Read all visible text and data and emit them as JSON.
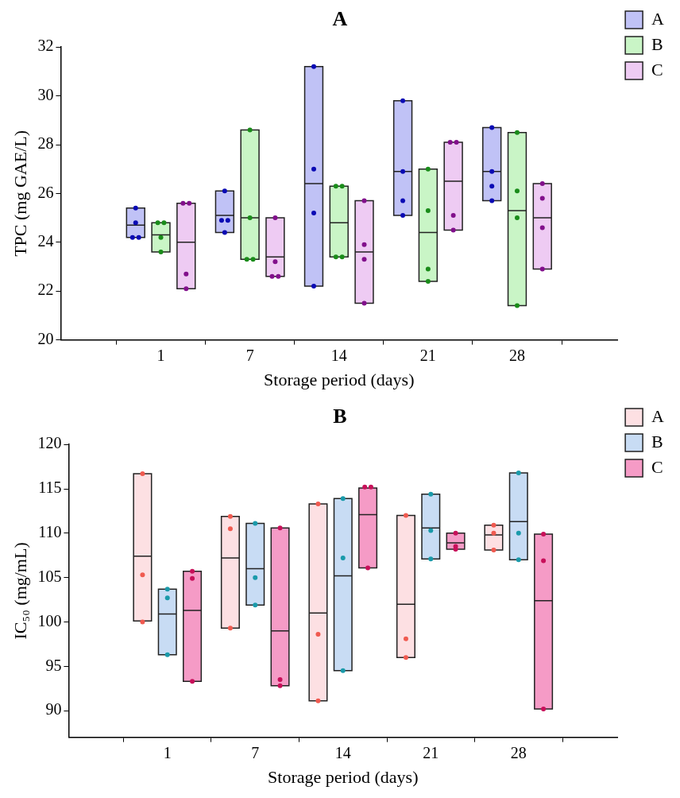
{
  "chart_data": [
    {
      "type": "box",
      "title": "A",
      "xlabel": "Storage period (days)",
      "ylabel": "TPC (mg GAE/L)",
      "categories": [
        "1",
        "7",
        "14",
        "21",
        "28"
      ],
      "ylim": [
        20,
        32
      ],
      "yticks": [
        20,
        22,
        24,
        26,
        28,
        30,
        32
      ],
      "grid": false,
      "legend": "top right",
      "marker": "circle",
      "series": [
        {
          "name": "A",
          "color": "#c0c2f6",
          "boxes": [
            {
              "low": 24.2,
              "q1": 24.2,
              "median": 24.7,
              "q3": 25.4,
              "high": 25.4
            },
            {
              "low": 24.4,
              "q1": 24.4,
              "median": 25.1,
              "q3": 26.1,
              "high": 26.1
            },
            {
              "low": 22.2,
              "q1": 22.2,
              "median": 26.4,
              "q3": 31.2,
              "high": 31.2
            },
            {
              "low": 25.1,
              "q1": 25.1,
              "median": 26.9,
              "q3": 29.8,
              "high": 29.8
            },
            {
              "low": 25.7,
              "q1": 25.7,
              "median": 26.9,
              "q3": 28.7,
              "high": 28.7
            }
          ]
        },
        {
          "name": "B",
          "color": "#c9f5c6",
          "boxes": [
            {
              "low": 23.6,
              "q1": 23.6,
              "median": 24.3,
              "q3": 24.8,
              "high": 24.8
            },
            {
              "low": 23.3,
              "q1": 23.3,
              "median": 25.0,
              "q3": 28.6,
              "high": 28.6
            },
            {
              "low": 23.4,
              "q1": 23.4,
              "median": 24.8,
              "q3": 26.3,
              "high": 26.3
            },
            {
              "low": 22.4,
              "q1": 22.4,
              "median": 24.4,
              "q3": 27.0,
              "high": 27.0
            },
            {
              "low": 21.4,
              "q1": 21.4,
              "median": 25.3,
              "q3": 28.5,
              "high": 28.5
            }
          ]
        },
        {
          "name": "C",
          "color": "#eecbf3",
          "boxes": [
            {
              "low": 22.1,
              "q1": 22.1,
              "median": 24.0,
              "q3": 25.6,
              "high": 25.6
            },
            {
              "low": 22.6,
              "q1": 22.6,
              "median": 23.4,
              "q3": 25.0,
              "high": 25.0
            },
            {
              "low": 21.5,
              "q1": 21.5,
              "median": 23.6,
              "q3": 25.7,
              "high": 25.7
            },
            {
              "low": 24.5,
              "q1": 24.5,
              "median": 26.5,
              "q3": 28.1,
              "high": 28.1
            },
            {
              "low": 22.9,
              "q1": 22.9,
              "median": 25.0,
              "q3": 26.4,
              "high": 26.4
            }
          ]
        },
        {
          "type": "scatter",
          "color": "#0a0ab4",
          "x": [
            "1",
            "1",
            "1",
            "1",
            "7",
            "7",
            "7",
            "7",
            "14",
            "14",
            "14",
            "14",
            "21",
            "21",
            "21",
            "21",
            "28",
            "28",
            "28",
            "28"
          ],
          "values": [
            25.4,
            24.8,
            24.2,
            24.2,
            26.1,
            24.9,
            24.9,
            24.4,
            31.2,
            27.0,
            25.2,
            22.2,
            29.8,
            26.9,
            25.7,
            25.1,
            28.7,
            26.9,
            26.3,
            25.7
          ]
        },
        {
          "type": "scatter",
          "color": "#1a8c1a",
          "x": [
            "1",
            "1",
            "1",
            "1",
            "7",
            "7",
            "7",
            "7",
            "14",
            "14",
            "14",
            "14",
            "21",
            "21",
            "21",
            "21",
            "28",
            "28",
            "28",
            "28"
          ],
          "values": [
            24.8,
            24.8,
            24.2,
            23.6,
            28.6,
            25.0,
            23.3,
            23.3,
            26.3,
            26.3,
            23.4,
            23.4,
            27.0,
            25.3,
            22.9,
            22.4,
            28.5,
            26.1,
            25.0,
            21.4
          ]
        },
        {
          "type": "scatter",
          "color": "#82108c",
          "x": [
            "1",
            "1",
            "1",
            "1",
            "7",
            "7",
            "7",
            "7",
            "14",
            "14",
            "14",
            "14",
            "21",
            "21",
            "21",
            "21",
            "28",
            "28",
            "28",
            "28"
          ],
          "values": [
            25.6,
            25.6,
            22.7,
            22.1,
            25.0,
            23.2,
            22.6,
            22.6,
            25.7,
            23.9,
            23.3,
            21.5,
            28.1,
            28.1,
            25.1,
            24.5,
            26.4,
            25.8,
            24.6,
            22.9
          ]
        }
      ]
    },
    {
      "type": "box",
      "title": "B",
      "xlabel": "Storage period (days)",
      "ylabel": "IC₅₀ (mg/mL)",
      "categories": [
        "1",
        "7",
        "14",
        "21",
        "28"
      ],
      "ylim": [
        87,
        120
      ],
      "yticks": [
        90,
        95,
        100,
        105,
        110,
        115,
        120
      ],
      "grid": false,
      "legend": "top right",
      "marker": "circle",
      "series": [
        {
          "name": "A",
          "color": "#fde0e3",
          "boxes": [
            {
              "low": 100.1,
              "q1": 100.1,
              "median": 107.4,
              "q3": 116.7,
              "high": 116.7
            },
            {
              "low": 99.3,
              "q1": 99.3,
              "median": 107.2,
              "q3": 111.9,
              "high": 111.9
            },
            {
              "low": 91.1,
              "q1": 91.1,
              "median": 101.0,
              "q3": 113.3,
              "high": 113.3
            },
            {
              "low": 96.0,
              "q1": 96.0,
              "median": 102.0,
              "q3": 112.0,
              "high": 112.0
            },
            {
              "low": 108.1,
              "q1": 108.1,
              "median": 109.8,
              "q3": 110.9,
              "high": 110.9
            }
          ]
        },
        {
          "name": "B",
          "color": "#c8dcf4",
          "boxes": [
            {
              "low": 96.3,
              "q1": 96.3,
              "median": 100.9,
              "q3": 103.7,
              "high": 103.7
            },
            {
              "low": 101.9,
              "q1": 101.9,
              "median": 106.0,
              "q3": 111.1,
              "high": 111.1
            },
            {
              "low": 94.5,
              "q1": 94.5,
              "median": 105.2,
              "q3": 113.9,
              "high": 113.9
            },
            {
              "low": 107.1,
              "q1": 107.1,
              "median": 110.6,
              "q3": 114.4,
              "high": 114.4
            },
            {
              "low": 107.0,
              "q1": 107.0,
              "median": 111.3,
              "q3": 116.8,
              "high": 116.8
            }
          ]
        },
        {
          "name": "C",
          "color": "#f59bc6",
          "boxes": [
            {
              "low": 93.3,
              "q1": 93.3,
              "median": 101.3,
              "q3": 105.7,
              "high": 105.7
            },
            {
              "low": 92.8,
              "q1": 92.8,
              "median": 99.0,
              "q3": 110.6,
              "high": 110.6
            },
            {
              "low": 106.1,
              "q1": 106.1,
              "median": 112.1,
              "q3": 115.1,
              "high": 115.1
            },
            {
              "low": 108.2,
              "q1": 108.2,
              "median": 108.9,
              "q3": 110.0,
              "high": 110.0
            },
            {
              "low": 90.2,
              "q1": 90.2,
              "median": 102.4,
              "q3": 109.9,
              "high": 109.9
            }
          ]
        },
        {
          "type": "scatter",
          "color": "#f05a50",
          "x": [
            "1",
            "1",
            "1",
            "7",
            "7",
            "7",
            "14",
            "14",
            "14",
            "21",
            "21",
            "21",
            "28",
            "28",
            "28"
          ],
          "values": [
            116.7,
            105.3,
            100.0,
            111.9,
            110.5,
            99.3,
            113.3,
            98.6,
            91.1,
            112.0,
            98.1,
            96.0,
            110.9,
            110.0,
            108.1
          ]
        },
        {
          "type": "scatter",
          "color": "#1a9aaa",
          "x": [
            "1",
            "1",
            "1",
            "7",
            "7",
            "7",
            "14",
            "14",
            "14",
            "21",
            "21",
            "21",
            "28",
            "28",
            "28"
          ],
          "values": [
            103.7,
            102.7,
            96.3,
            111.1,
            105.0,
            101.9,
            113.9,
            107.2,
            94.5,
            114.4,
            110.3,
            107.1,
            116.8,
            110.0,
            107.0
          ]
        },
        {
          "type": "scatter",
          "color": "#c8105a",
          "x": [
            "1",
            "1",
            "1",
            "7",
            "7",
            "7",
            "14",
            "14",
            "14",
            "21",
            "21",
            "21",
            "28",
            "28",
            "28"
          ],
          "values": [
            105.7,
            104.9,
            93.3,
            110.6,
            93.5,
            92.8,
            115.2,
            115.2,
            106.1,
            110.0,
            108.5,
            108.2,
            109.9,
            106.9,
            90.2
          ]
        }
      ]
    }
  ]
}
